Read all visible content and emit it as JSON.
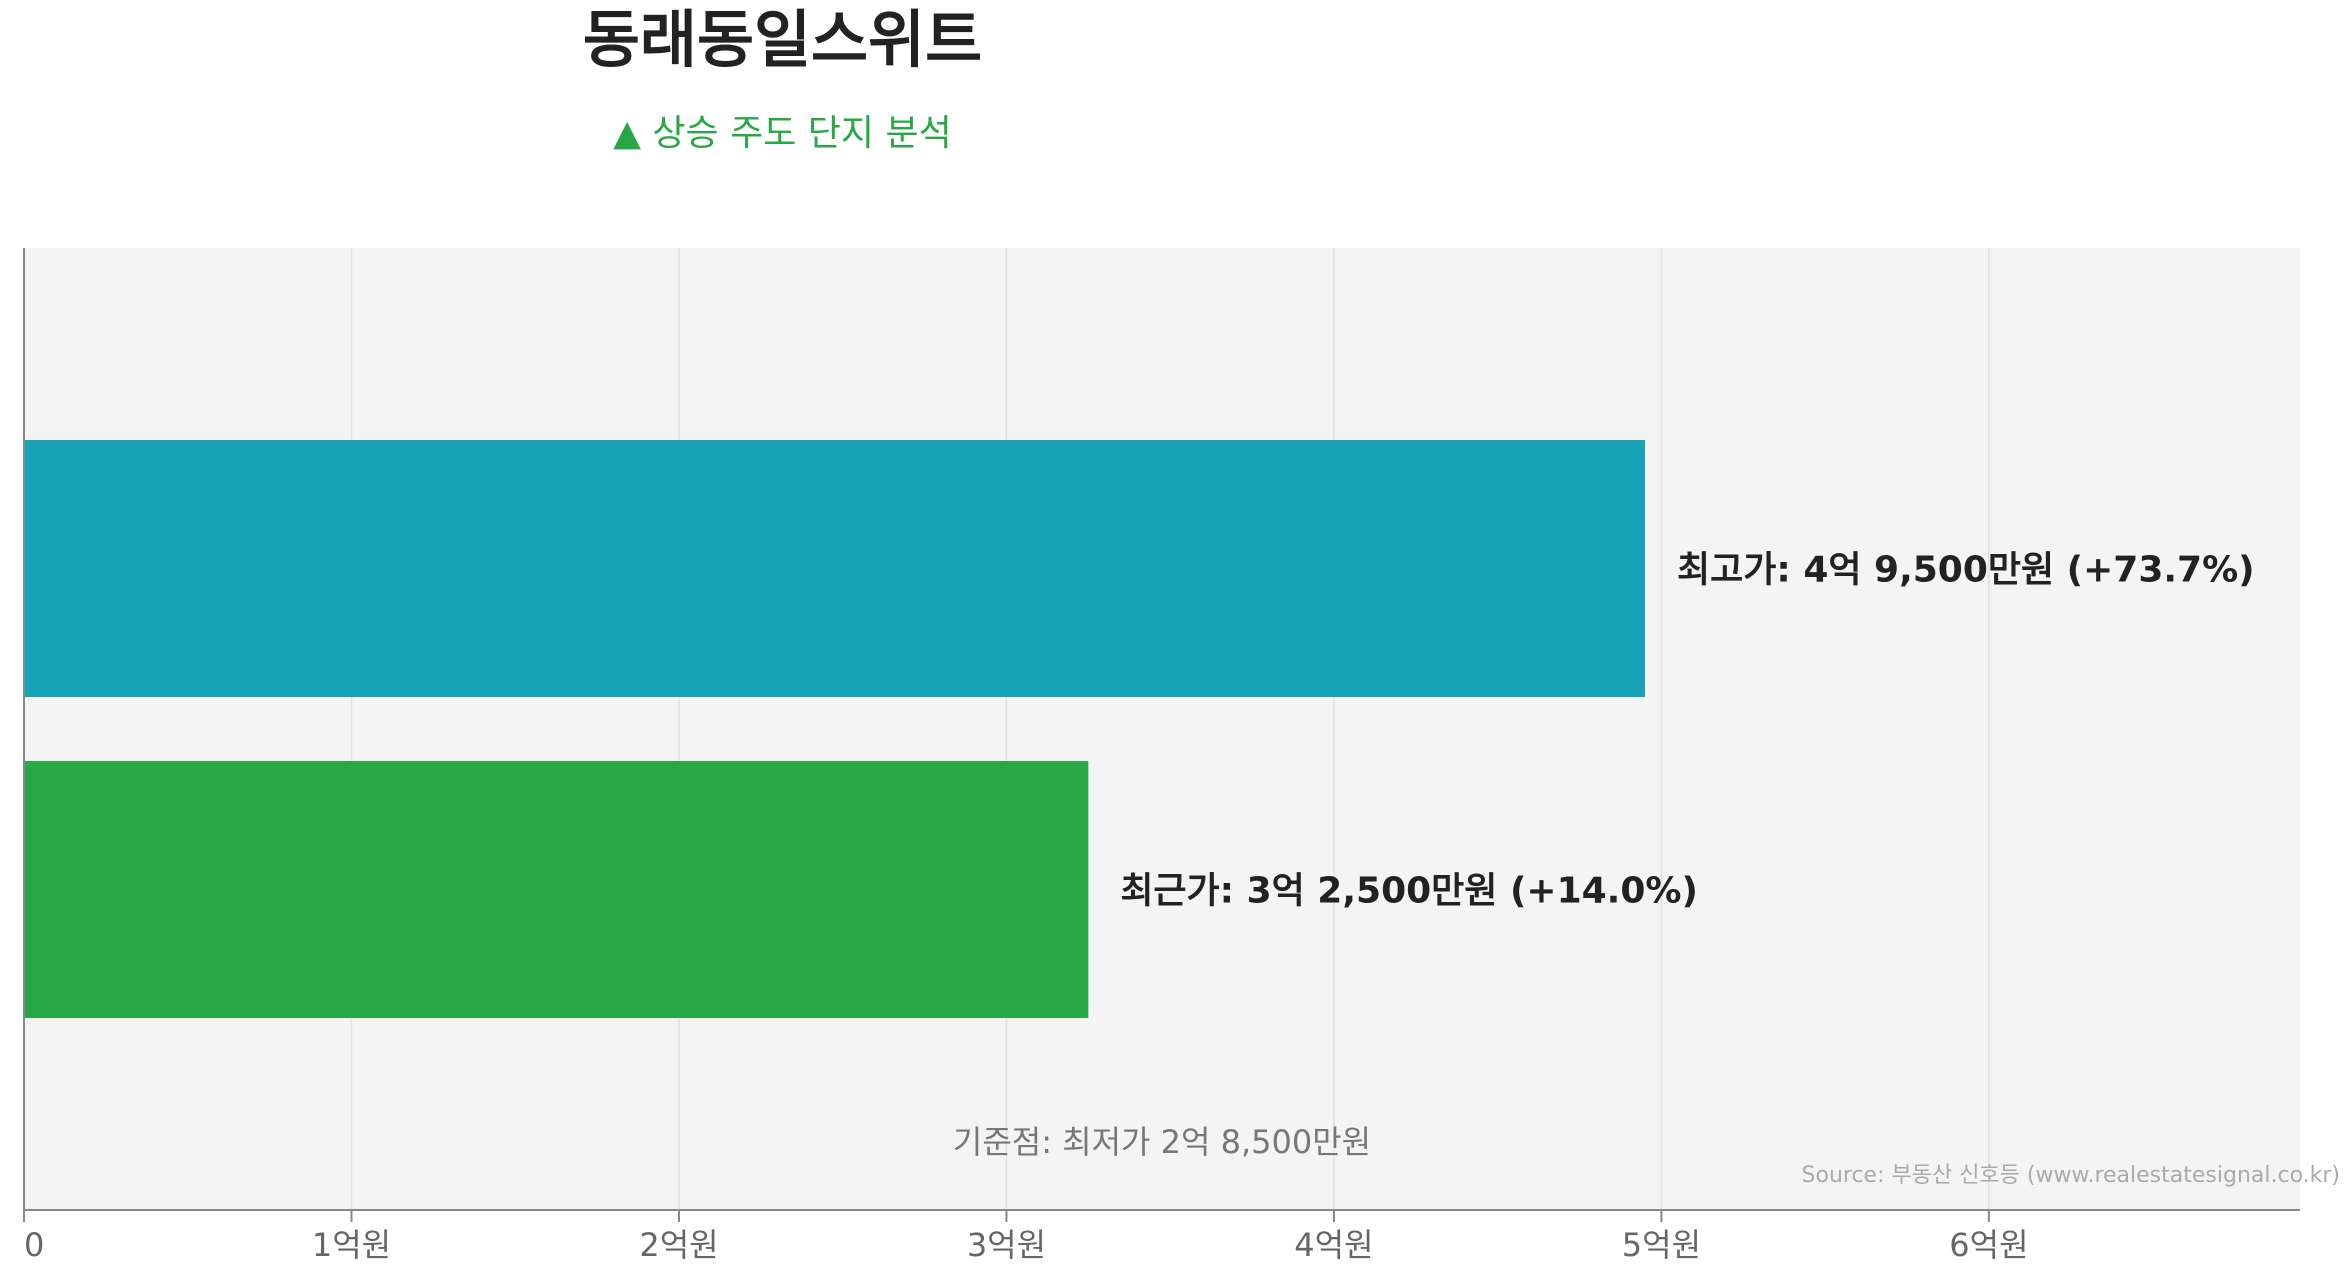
{
  "chart_data": {
    "type": "bar",
    "orientation": "horizontal",
    "title": "동래동일스위트",
    "subtitle": "▲ 상승 주도 단지 분석",
    "x_ticks": [
      {
        "value": 0,
        "label": "0"
      },
      {
        "value": 10000,
        "label": "1억원"
      },
      {
        "value": 20000,
        "label": "2억원"
      },
      {
        "value": 30000,
        "label": "3억원"
      },
      {
        "value": 40000,
        "label": "4억원"
      },
      {
        "value": 50000,
        "label": "5억원"
      },
      {
        "value": 60000,
        "label": "6억원"
      }
    ],
    "xlim": [
      0,
      69500
    ],
    "x_unit": "만원",
    "grid": true,
    "bars": [
      {
        "category": "최고가",
        "value": 49500,
        "label": "최고가: 4억 9,500만원 (+73.7%)",
        "color": "#17a2b8"
      },
      {
        "category": "최근가",
        "value": 32500,
        "label": "최근가: 3억 2,500만원 (+14.0%)",
        "color": "#28a745"
      }
    ],
    "baseline_note": "기준점: 최저가 2억 8,500만원",
    "source": "Source: 부동산 신호등 (www.realestatesignal.co.kr)"
  },
  "colors": {
    "plot_background": "#f4f4f4",
    "grid": "#e2e2e2",
    "axis": "#888888",
    "tick_text": "#666666",
    "bar_label_text": "#222222",
    "note_text": "#777777",
    "source_text": "#aaaaaa"
  }
}
